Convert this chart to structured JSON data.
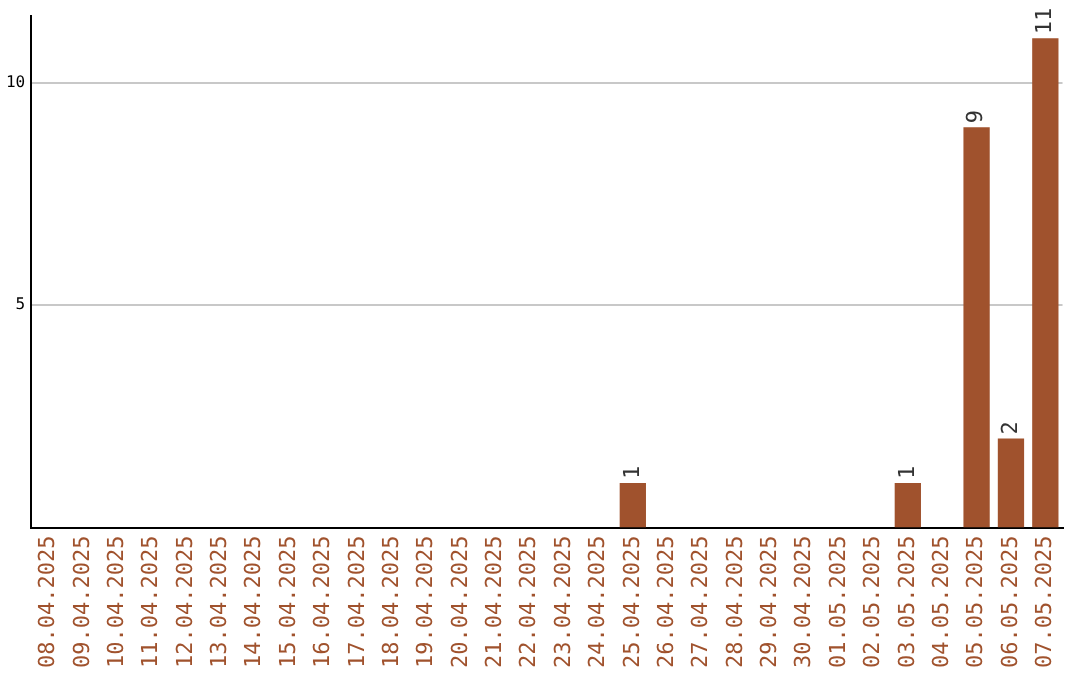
{
  "chart_data": {
    "type": "bar",
    "categories": [
      "08.04.2025",
      "09.04.2025",
      "10.04.2025",
      "11.04.2025",
      "12.04.2025",
      "13.04.2025",
      "14.04.2025",
      "15.04.2025",
      "16.04.2025",
      "17.04.2025",
      "18.04.2025",
      "19.04.2025",
      "20.04.2025",
      "21.04.2025",
      "22.04.2025",
      "23.04.2025",
      "24.04.2025",
      "25.04.2025",
      "26.04.2025",
      "27.04.2025",
      "28.04.2025",
      "29.04.2025",
      "30.04.2025",
      "01.05.2025",
      "02.05.2025",
      "03.05.2025",
      "04.05.2025",
      "05.05.2025",
      "06.05.2025",
      "07.05.2025"
    ],
    "values": [
      0,
      0,
      0,
      0,
      0,
      0,
      0,
      0,
      0,
      0,
      0,
      0,
      0,
      0,
      0,
      0,
      0,
      1,
      0,
      0,
      0,
      0,
      0,
      0,
      0,
      1,
      0,
      9,
      2,
      11
    ],
    "value_labels": [
      null,
      null,
      null,
      null,
      null,
      null,
      null,
      null,
      null,
      null,
      null,
      null,
      null,
      null,
      null,
      null,
      null,
      "1",
      null,
      null,
      null,
      null,
      null,
      null,
      null,
      "1",
      null,
      "9",
      "2",
      "11"
    ],
    "color": "#a0522d",
    "ylim": [
      0,
      11.5
    ],
    "yticks": [
      5,
      10
    ],
    "grid": "y",
    "legend": false
  }
}
